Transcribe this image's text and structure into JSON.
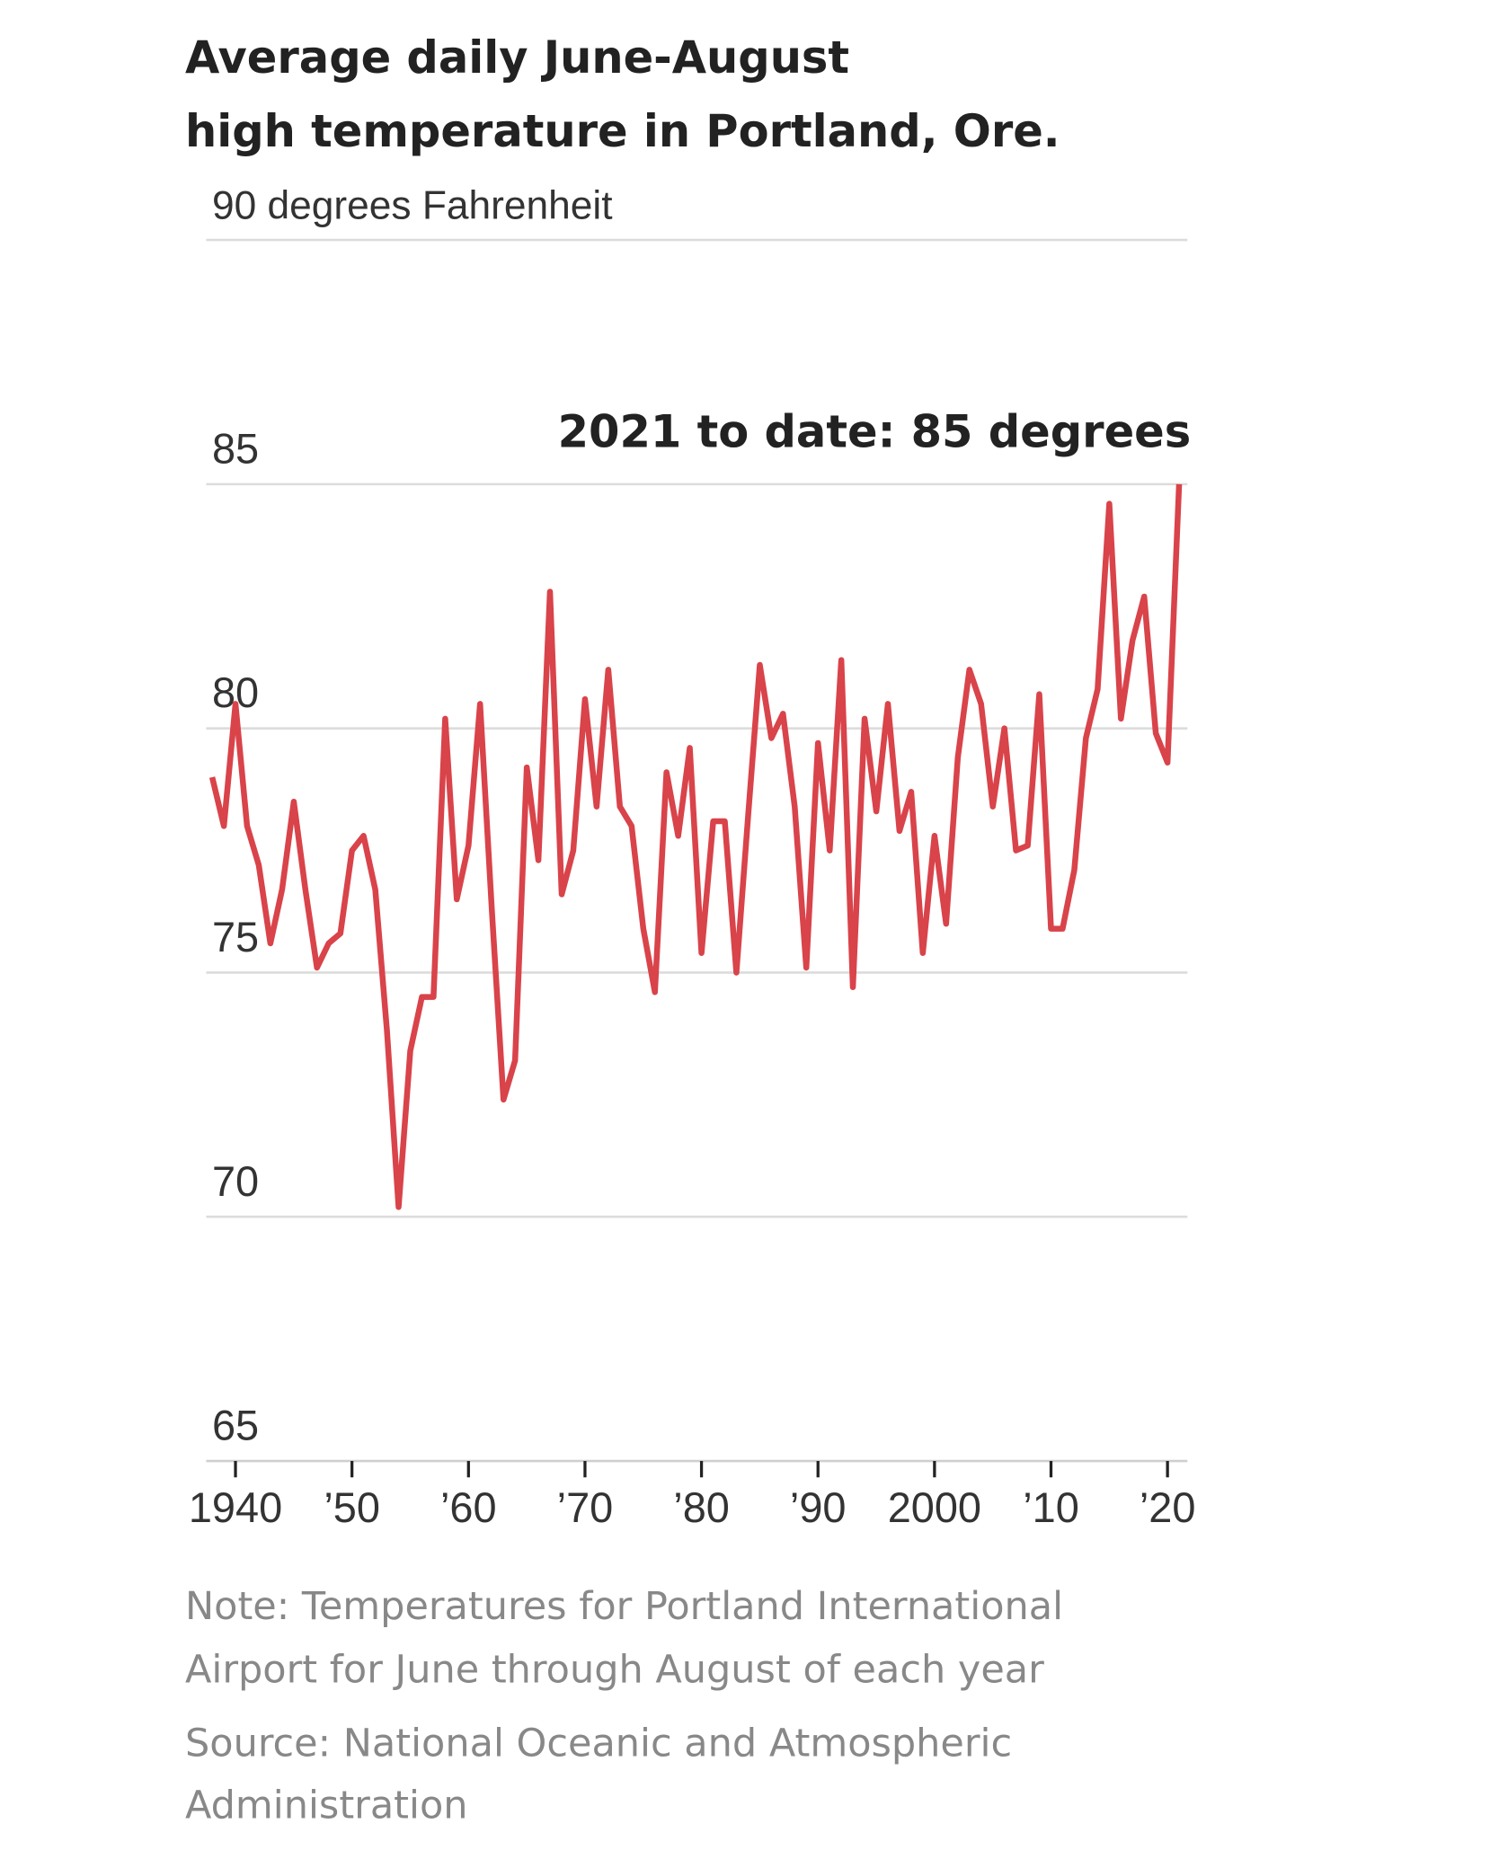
{
  "chart_data": {
    "type": "line",
    "title": "Average daily June-August high temperature in Portland, Ore.",
    "title_lines": [
      "Average daily June-August",
      "high temperature in Portland, Ore."
    ],
    "ylabel": "90 degrees Fahrenheit",
    "ylim": [
      65,
      90
    ],
    "yticks": [
      90,
      85,
      80,
      75,
      70,
      65
    ],
    "ytick_labels": [
      "90 degrees Fahrenheit",
      "85",
      "80",
      "75",
      "70",
      "65"
    ],
    "xlim": [
      1938,
      2021
    ],
    "xticks": [
      1940,
      1950,
      1960,
      1970,
      1980,
      1990,
      2000,
      2010,
      2020
    ],
    "xtick_labels": [
      "1940",
      "’50",
      "’60",
      "’70",
      "’80",
      "’90",
      "2000",
      "’10",
      "’20"
    ],
    "grid": true,
    "series_color": "#d9434a",
    "annotation": "2021 to date: 85 degrees",
    "series": [
      {
        "name": "Average daily June-August high (°F)",
        "x_start": 1938,
        "values": [
          79.0,
          78.0,
          80.5,
          78.0,
          77.2,
          75.6,
          76.7,
          78.5,
          76.7,
          75.1,
          75.6,
          75.8,
          77.5,
          77.8,
          76.7,
          73.8,
          70.2,
          73.4,
          74.5,
          74.5,
          80.2,
          76.5,
          77.6,
          80.5,
          76.3,
          72.4,
          73.2,
          79.2,
          77.3,
          82.8,
          76.6,
          77.5,
          80.6,
          78.4,
          81.2,
          78.4,
          78.0,
          75.9,
          74.6,
          79.1,
          77.8,
          79.6,
          75.4,
          78.1,
          78.1,
          75.0,
          78.2,
          81.3,
          79.8,
          80.3,
          78.4,
          75.1,
          79.7,
          77.5,
          81.4,
          74.7,
          80.2,
          78.3,
          80.5,
          77.9,
          78.7,
          75.4,
          77.8,
          76.0,
          79.4,
          81.2,
          80.5,
          78.4,
          80.0,
          77.5,
          77.6,
          80.7,
          75.9,
          75.9,
          77.1,
          79.8,
          80.8,
          84.6,
          80.2,
          81.8,
          82.7,
          79.9,
          79.3,
          85.0
        ]
      }
    ],
    "notes": [
      "Note: Temperatures for Portland International",
      "Airport for June through August of each year",
      "Source: National Oceanic and Atmospheric",
      "Administration"
    ]
  }
}
